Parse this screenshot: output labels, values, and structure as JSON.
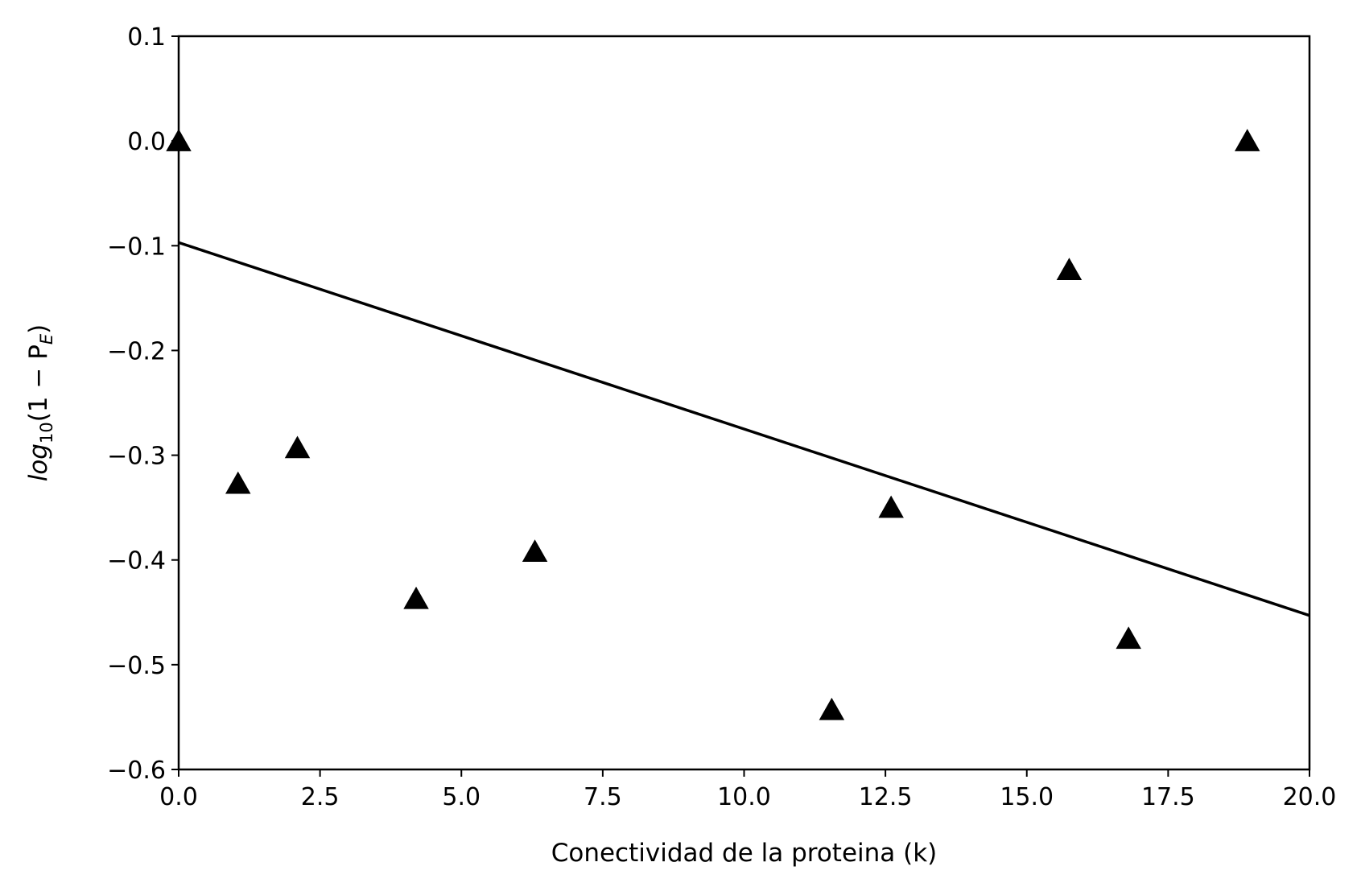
{
  "chart_data": {
    "type": "scatter",
    "xlabel": "Conectividad de la proteina (k)",
    "ylabel": {
      "prefix": "log",
      "prefix_sub": "10",
      "body": "(1 − P",
      "body_sub": "E",
      "suffix": ")"
    },
    "xlim": [
      0,
      20
    ],
    "ylim": [
      -0.6,
      0.1
    ],
    "x_ticks": [
      {
        "value": 0,
        "label": "0.0"
      },
      {
        "value": 2.5,
        "label": "2.5"
      },
      {
        "value": 5,
        "label": "5.0"
      },
      {
        "value": 7.5,
        "label": "7.5"
      },
      {
        "value": 10,
        "label": "10.0"
      },
      {
        "value": 12.5,
        "label": "12.5"
      },
      {
        "value": 15,
        "label": "15.0"
      },
      {
        "value": 17.5,
        "label": "17.5"
      },
      {
        "value": 20,
        "label": "20.0"
      }
    ],
    "y_ticks": [
      {
        "value": 0.1,
        "label": "0.1"
      },
      {
        "value": 0.0,
        "label": "0.0"
      },
      {
        "value": -0.1,
        "label": "−0.1"
      },
      {
        "value": -0.2,
        "label": "−0.2"
      },
      {
        "value": -0.3,
        "label": "−0.3"
      },
      {
        "value": -0.4,
        "label": "−0.4"
      },
      {
        "value": -0.5,
        "label": "−0.5"
      },
      {
        "value": -0.6,
        "label": "−0.6"
      }
    ],
    "grid": false,
    "points": [
      {
        "x": 0.0,
        "y": 0.0
      },
      {
        "x": 1.05,
        "y": -0.327
      },
      {
        "x": 2.1,
        "y": -0.293
      },
      {
        "x": 4.2,
        "y": -0.437
      },
      {
        "x": 6.3,
        "y": -0.392
      },
      {
        "x": 11.55,
        "y": -0.543
      },
      {
        "x": 12.6,
        "y": -0.35
      },
      {
        "x": 15.75,
        "y": -0.123
      },
      {
        "x": 16.8,
        "y": -0.475
      },
      {
        "x": 18.9,
        "y": 0.0
      }
    ],
    "fit_line": {
      "x": [
        0,
        20
      ],
      "y": [
        -0.097,
        -0.453
      ]
    },
    "marker_color": "#000000",
    "line_color": "#000000"
  }
}
